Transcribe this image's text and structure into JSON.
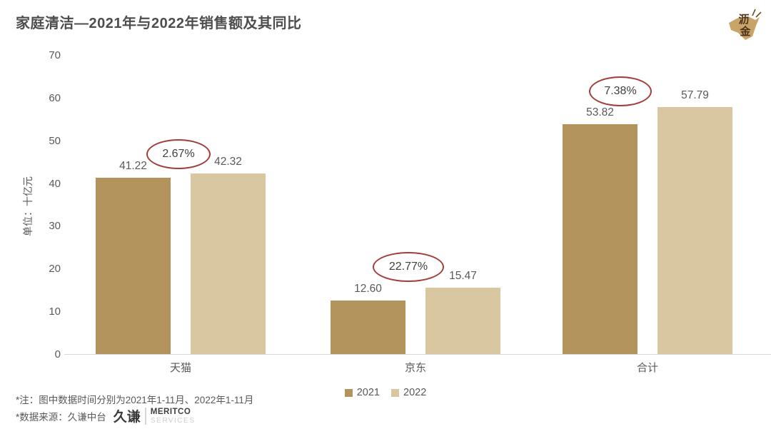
{
  "header": {
    "title": "家庭清洁—2021年与2022年销售额及其同比",
    "logo_text": "沥金"
  },
  "chart_data": {
    "type": "bar",
    "title": "家庭清洁—2021年与2022年销售额及其同比",
    "categories": [
      "天猫",
      "京东",
      "合计"
    ],
    "series": [
      {
        "name": "2021",
        "color": "#b2935c",
        "values": [
          41.22,
          12.6,
          53.82
        ]
      },
      {
        "name": "2022",
        "color": "#d9c7a1",
        "values": [
          42.32,
          15.47,
          57.79
        ]
      }
    ],
    "growth_labels": [
      "2.67%",
      "22.77%",
      "7.38%"
    ],
    "annotation_style": {
      "shape": "ellipse",
      "stroke_color": "#a13e3a"
    },
    "xlabel": "",
    "ylabel": "单位：十亿元",
    "ylim": [
      0,
      70
    ],
    "yticks": [
      0,
      10,
      20,
      30,
      40,
      50,
      60,
      70
    ],
    "grid": false,
    "legend_position": "bottom-center",
    "value_label_decimals": 2
  },
  "footnotes": {
    "line1": "*注：图中数据时间分别为2021年1-11月、2022年1-11月",
    "line2": "*数据来源：久谦中台"
  },
  "footer_logo": {
    "cn": "久谦",
    "en_top": "MERITCO",
    "en_bottom": "SERVICES"
  }
}
